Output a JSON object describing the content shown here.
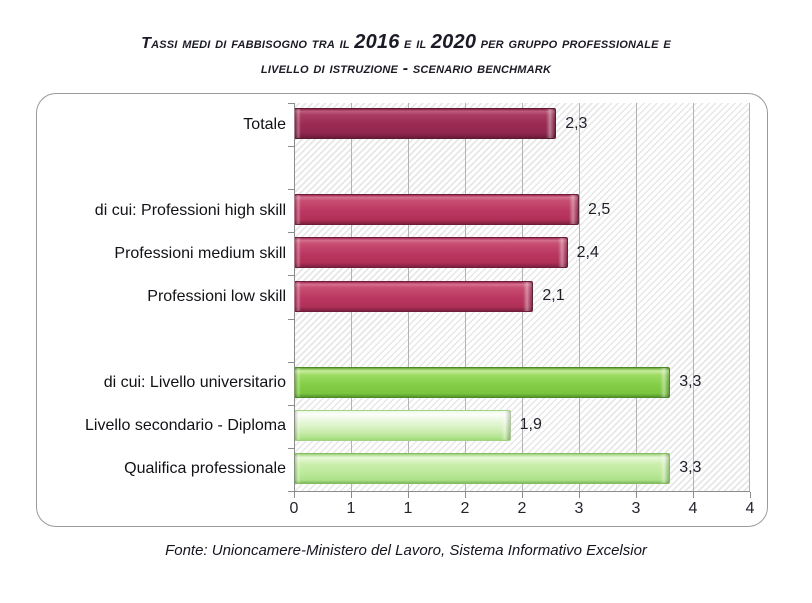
{
  "title": {
    "seg1": "Tassi medi di fabbisogno tra il",
    "year1": "2016",
    "seg2": "e il",
    "year2": "2020",
    "seg3": "per gruppo professionale e",
    "line2": "livello di istruzione - scenario benchmark"
  },
  "footer": {
    "text": "Fonte: Unioncamere-Ministero del Lavoro, Sistema Informativo Excelsior"
  },
  "colors": {
    "bar_totale": "#9b2b53",
    "bar_professioni": "#bb3763",
    "bar_universitario": "#82cd45",
    "bar_diploma": "#c8ebaa",
    "bar_qualifica": "#b9e896",
    "gridline": "#b3b3b3",
    "axis": "#8c8c8c",
    "text": "#1f1f2b"
  },
  "chart_data": {
    "type": "bar",
    "orientation": "horizontal",
    "title": "Tassi medi di fabbisogno tra il 2016 e il 2020 per gruppo professionale e livello di istruzione - scenario benchmark",
    "source": "Fonte: Unioncamere-Ministero del Lavoro, Sistema Informativo Excelsior",
    "xlim": [
      0,
      4
    ],
    "x_tick_step": 0.5,
    "x_tick_labels": [
      "0",
      "1",
      "1",
      "2",
      "2",
      "3",
      "3",
      "4",
      "4"
    ],
    "grid": "vertical",
    "plot_background": "diagonal-hatch",
    "rows": [
      {
        "label": "Totale",
        "value": 2.3,
        "value_label": "2,3",
        "style": "maroon"
      },
      {
        "label": "",
        "value": null,
        "value_label": "",
        "style": "empty"
      },
      {
        "label": "di cui: Professioni high skill",
        "value": 2.5,
        "value_label": "2,5",
        "style": "crimson"
      },
      {
        "label": "Professioni medium skill",
        "value": 2.4,
        "value_label": "2,4",
        "style": "crimson"
      },
      {
        "label": "Professioni low skill",
        "value": 2.1,
        "value_label": "2,1",
        "style": "crimson"
      },
      {
        "label": "",
        "value": null,
        "value_label": "",
        "style": "empty"
      },
      {
        "label": "di cui: Livello universitario",
        "value": 3.3,
        "value_label": "3,3",
        "style": "green"
      },
      {
        "label": "Livello secondario - Diploma",
        "value": 1.9,
        "value_label": "1,9",
        "style": "palegreen"
      },
      {
        "label": "Qualifica professionale",
        "value": 3.3,
        "value_label": "3,3",
        "style": "lightgreen"
      }
    ]
  }
}
